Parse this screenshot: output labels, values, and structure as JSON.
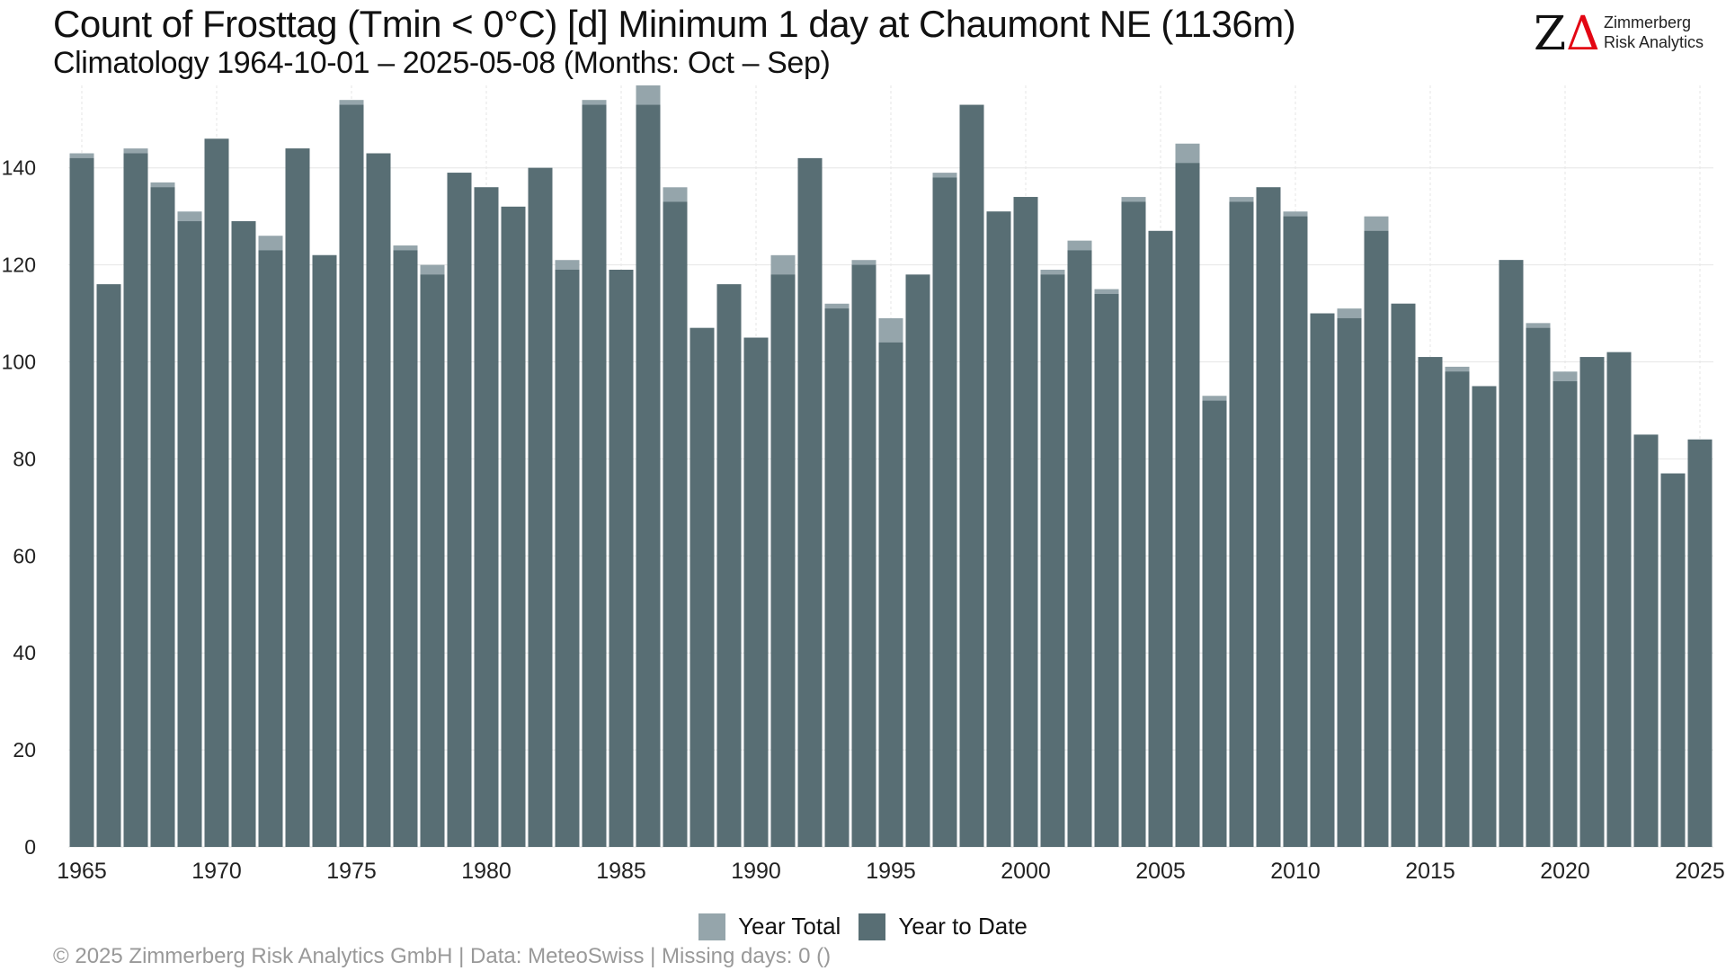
{
  "header": {
    "title": "Count of Frosttag (Tmin < 0°C) [d] Minimum 1 day at Chaumont  NE (1136m)",
    "subtitle": "Climatology 1964-10-01 – 2025-05-08 (Months: Oct – Sep)"
  },
  "logo": {
    "mark_z": "Z",
    "mark_delta": "Δ",
    "line1": "Zimmerberg",
    "line2": "Risk Analytics",
    "mark_color": "#e30613"
  },
  "footer": {
    "text": "©  2025 Zimmerberg Risk Analytics GmbH | Data: MeteoSwiss | Missing days: 0 ()"
  },
  "chart_data": {
    "type": "bar",
    "stacked_overlay": true,
    "x": [
      1965,
      1966,
      1967,
      1968,
      1969,
      1970,
      1971,
      1972,
      1973,
      1974,
      1975,
      1976,
      1977,
      1978,
      1979,
      1980,
      1981,
      1982,
      1983,
      1984,
      1985,
      1986,
      1987,
      1988,
      1989,
      1990,
      1991,
      1992,
      1993,
      1994,
      1995,
      1996,
      1997,
      1998,
      1999,
      2000,
      2001,
      2002,
      2003,
      2004,
      2005,
      2006,
      2007,
      2008,
      2009,
      2010,
      2011,
      2012,
      2013,
      2014,
      2015,
      2016,
      2017,
      2018,
      2019,
      2020,
      2021,
      2022,
      2023,
      2024,
      2025
    ],
    "series": [
      {
        "name": "Year Total",
        "color": "#95a5ab",
        "values": [
          143,
          116,
          144,
          137,
          131,
          146,
          129,
          126,
          144,
          122,
          154,
          143,
          124,
          120,
          139,
          136,
          132,
          140,
          121,
          154,
          119,
          157,
          136,
          107,
          116,
          105,
          122,
          142,
          112,
          121,
          109,
          118,
          139,
          153,
          131,
          134,
          119,
          125,
          115,
          134,
          127,
          145,
          93,
          134,
          136,
          131,
          110,
          111,
          130,
          112,
          101,
          99,
          95,
          121,
          108,
          98,
          101,
          102,
          85,
          77,
          84
        ]
      },
      {
        "name": "Year to Date",
        "color": "#586e74",
        "values": [
          142,
          116,
          143,
          136,
          129,
          146,
          129,
          123,
          144,
          122,
          153,
          143,
          123,
          118,
          139,
          136,
          132,
          140,
          119,
          153,
          119,
          153,
          133,
          107,
          116,
          105,
          118,
          142,
          111,
          120,
          104,
          118,
          138,
          153,
          131,
          134,
          118,
          123,
          114,
          133,
          127,
          141,
          92,
          133,
          136,
          130,
          110,
          109,
          127,
          112,
          101,
          98,
          95,
          121,
          107,
          96,
          101,
          102,
          85,
          77,
          84
        ]
      }
    ],
    "x_ticks": [
      1965,
      1970,
      1975,
      1980,
      1985,
      1990,
      1995,
      2000,
      2005,
      2010,
      2015,
      2020,
      2025
    ],
    "y_ticks": [
      0,
      20,
      40,
      60,
      80,
      100,
      120,
      140
    ],
    "ylim": [
      0,
      157
    ],
    "xlabel": "",
    "ylabel": "",
    "grid": true,
    "legend_position": "bottom"
  }
}
